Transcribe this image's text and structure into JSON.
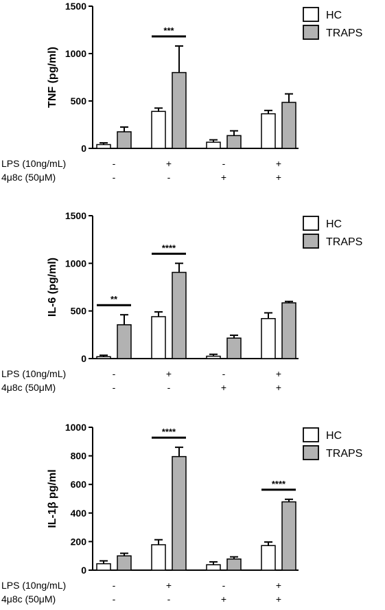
{
  "conditions": {
    "rows": [
      {
        "label": "LPS (10ng/mL)",
        "values": [
          "-",
          "+",
          "-",
          "+"
        ]
      },
      {
        "label": "4μ8c (50μM)",
        "values": [
          "-",
          "-",
          "+",
          "+"
        ]
      }
    ]
  },
  "legend": {
    "hc": "HC",
    "traps": "TRAPS"
  },
  "colors": {
    "hc": "#ffffff",
    "traps": "#b2b2b2",
    "stroke": "#000000"
  },
  "chart_data": [
    {
      "type": "bar",
      "ylabel": "TNF (pg/ml)",
      "ylim": [
        0,
        1500
      ],
      "yticks": [
        0,
        500,
        1000,
        1500
      ],
      "groups": 4,
      "series": [
        {
          "name": "HC",
          "values": [
            40,
            390,
            65,
            365
          ],
          "errors": [
            18,
            35,
            25,
            35
          ]
        },
        {
          "name": "TRAPS",
          "values": [
            175,
            800,
            135,
            485
          ],
          "errors": [
            50,
            280,
            50,
            90
          ]
        }
      ],
      "significance": [
        {
          "group": 1,
          "label": "***"
        }
      ]
    },
    {
      "type": "bar",
      "ylabel": "IL-6 (pg/ml)",
      "ylim": [
        0,
        1500
      ],
      "yticks": [
        0,
        500,
        1000,
        1500
      ],
      "groups": 4,
      "series": [
        {
          "name": "HC",
          "values": [
            20,
            440,
            25,
            420
          ],
          "errors": [
            15,
            50,
            20,
            60
          ]
        },
        {
          "name": "TRAPS",
          "values": [
            355,
            905,
            215,
            585
          ],
          "errors": [
            105,
            95,
            30,
            15
          ]
        }
      ],
      "significance": [
        {
          "group": 0,
          "label": "**"
        },
        {
          "group": 1,
          "label": "****"
        }
      ]
    },
    {
      "type": "bar",
      "ylabel": "IL-1β pg/ml",
      "ylim": [
        0,
        1000
      ],
      "yticks": [
        0,
        200,
        400,
        600,
        800,
        1000
      ],
      "groups": 4,
      "series": [
        {
          "name": "HC",
          "values": [
            45,
            178,
            38,
            172
          ],
          "errors": [
            20,
            35,
            20,
            25
          ]
        },
        {
          "name": "TRAPS",
          "values": [
            100,
            795,
            78,
            478
          ],
          "errors": [
            18,
            65,
            15,
            18
          ]
        }
      ],
      "significance": [
        {
          "group": 1,
          "label": "****"
        },
        {
          "group": 3,
          "label": "****"
        }
      ]
    }
  ]
}
